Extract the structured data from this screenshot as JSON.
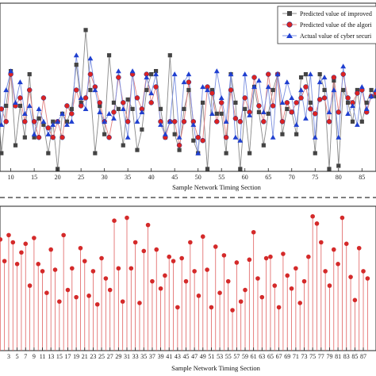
{
  "chart_data": [
    {
      "type": "line",
      "xlabel": "Sample Network Timing Section",
      "ylabel": "",
      "xlim": [
        6,
        88
      ],
      "ylim": [
        0,
        1.03
      ],
      "tick_labels": [
        "10",
        "15",
        "20",
        "25",
        "30",
        "35",
        "40",
        "45",
        "50",
        "55",
        "60",
        "65",
        "70",
        "75",
        "80",
        "85"
      ],
      "tick_values": [
        10,
        15,
        20,
        25,
        30,
        35,
        40,
        45,
        50,
        55,
        60,
        65,
        70,
        75,
        80,
        85
      ],
      "legend_position": "top-right",
      "series": [
        {
          "name": "Predicted value of improved",
          "marker": "square",
          "color": "#444444",
          "line_color": "#888888",
          "x": [
            6,
            7,
            8,
            9,
            10,
            11,
            12,
            13,
            14,
            15,
            16,
            17,
            18,
            19,
            20,
            21,
            22,
            23,
            24,
            25,
            26,
            27,
            28,
            29,
            30,
            31,
            32,
            33,
            34,
            35,
            36,
            37,
            38,
            39,
            40,
            41,
            42,
            43,
            44,
            45,
            46,
            47,
            48,
            49,
            50,
            51,
            52,
            53,
            54,
            55,
            56,
            57,
            58,
            59,
            60,
            61,
            62,
            63,
            64,
            65,
            66,
            67,
            68,
            69,
            70,
            71,
            72,
            73,
            74,
            75,
            76,
            77,
            78,
            79,
            80,
            81,
            82,
            83,
            84,
            85,
            86,
            87,
            88
          ],
          "y": [
            0.32,
            0.58,
            0.1,
            0.4,
            0.62,
            0.15,
            0.4,
            0.2,
            0.6,
            0.2,
            0.32,
            0.28,
            0.1,
            0.3,
            0.0,
            0.35,
            0.3,
            0.38,
            0.66,
            0.42,
            0.88,
            0.5,
            0.1,
            0.4,
            0.22,
            0.72,
            0.42,
            0.38,
            0.15,
            0.44,
            0.38,
            0.12,
            0.25,
            0.5,
            0.6,
            0.62,
            0.38,
            0.2,
            0.72,
            0.22,
            0.12,
            0.38,
            0.5,
            0.18,
            0.1,
            0.42,
            0.0,
            0.5,
            0.35,
            0.35,
            0.1,
            0.6,
            0.42,
            0.0,
            0.38,
            0.1,
            0.52,
            0.36,
            0.15,
            0.35,
            0.5,
            0.6,
            0.22,
            0.38,
            0.36,
            0.22,
            0.58,
            0.6,
            0.42,
            0.1,
            0.6,
            0.5,
            0.0,
            0.56,
            0.02,
            0.5,
            0.42,
            0.3,
            0.5,
            0.3,
            0.42,
            0.5,
            0.46
          ]
        },
        {
          "name": "Predicted value of the algori",
          "marker": "circle",
          "color": "#dd2222",
          "line_color": "#e08080",
          "x": [
            6,
            7,
            8,
            9,
            10,
            11,
            12,
            13,
            14,
            15,
            16,
            17,
            18,
            19,
            20,
            21,
            22,
            23,
            24,
            25,
            26,
            27,
            28,
            29,
            30,
            31,
            32,
            33,
            34,
            35,
            36,
            37,
            38,
            39,
            40,
            41,
            42,
            43,
            44,
            45,
            46,
            47,
            48,
            49,
            50,
            51,
            52,
            53,
            54,
            55,
            56,
            57,
            58,
            59,
            60,
            61,
            62,
            63,
            64,
            65,
            66,
            67,
            68,
            69,
            70,
            71,
            72,
            73,
            74,
            75,
            76,
            77,
            78,
            79,
            80,
            81,
            82,
            83,
            84,
            85,
            86,
            87,
            88
          ],
          "y": [
            0.54,
            0.4,
            0.38,
            0.3,
            0.6,
            0.4,
            0.45,
            0.3,
            0.5,
            0.3,
            0.2,
            0.45,
            0.26,
            0.2,
            0.3,
            0.2,
            0.4,
            0.35,
            0.5,
            0.4,
            0.45,
            0.6,
            0.52,
            0.42,
            0.3,
            0.2,
            0.36,
            0.58,
            0.42,
            0.3,
            0.6,
            0.45,
            0.38,
            0.6,
            0.42,
            0.52,
            0.3,
            0.2,
            0.3,
            0.3,
            0.15,
            0.3,
            0.55,
            0.3,
            0.2,
            0.18,
            0.52,
            0.48,
            0.3,
            0.42,
            0.2,
            0.5,
            0.32,
            0.3,
            0.45,
            0.36,
            0.58,
            0.4,
            0.3,
            0.6,
            0.4,
            0.6,
            0.3,
            0.42,
            0.36,
            0.42,
            0.45,
            0.52,
            0.38,
            0.35,
            0.44,
            0.45,
            0.3,
            0.58,
            0.36,
            0.6,
            0.45,
            0.42,
            0.48,
            0.5,
            0.36,
            0.46,
            0.48
          ]
        },
        {
          "name": "Actual value of cyber securi",
          "marker": "triangle",
          "color": "#1f3fd0",
          "line_color": "#7a8fe0",
          "x": [
            6,
            7,
            8,
            9,
            10,
            11,
            12,
            13,
            14,
            15,
            16,
            17,
            18,
            19,
            20,
            21,
            22,
            23,
            24,
            25,
            26,
            27,
            28,
            29,
            30,
            31,
            32,
            33,
            34,
            35,
            36,
            37,
            38,
            39,
            40,
            41,
            42,
            43,
            44,
            45,
            46,
            47,
            48,
            49,
            50,
            51,
            52,
            53,
            54,
            55,
            56,
            57,
            58,
            59,
            60,
            61,
            62,
            63,
            64,
            65,
            66,
            67,
            68,
            69,
            70,
            71,
            72,
            73,
            74,
            75,
            76,
            77,
            78,
            79,
            80,
            81,
            82,
            83,
            84,
            85,
            86,
            87,
            88
          ],
          "y": [
            0.6,
            0.66,
            0.28,
            0.5,
            0.62,
            0.42,
            0.55,
            0.35,
            0.4,
            0.22,
            0.38,
            0.3,
            0.22,
            0.28,
            0.3,
            0.35,
            0.28,
            0.3,
            0.72,
            0.45,
            0.38,
            0.7,
            0.5,
            0.36,
            0.3,
            0.35,
            0.32,
            0.62,
            0.38,
            0.2,
            0.62,
            0.3,
            0.36,
            0.58,
            0.48,
            0.6,
            0.28,
            0.22,
            0.3,
            0.6,
            0.2,
            0.55,
            0.6,
            0.28,
            0.1,
            0.52,
            0.5,
            0.35,
            0.62,
            0.45,
            0.3,
            0.6,
            0.2,
            0.18,
            0.6,
            0.34,
            0.52,
            0.56,
            0.36,
            0.52,
            0.2,
            0.6,
            0.42,
            0.55,
            0.45,
            0.28,
            0.5,
            0.32,
            0.6,
            0.2,
            0.55,
            0.58,
            0.36,
            0.5,
            0.2,
            0.65,
            0.35,
            0.4,
            0.28,
            0.52,
            0.38,
            0.46,
            0.5
          ]
        }
      ]
    },
    {
      "type": "stem",
      "xlabel": "Sample Network Timing Section",
      "ylabel": "",
      "xlim": [
        0,
        90
      ],
      "ylim": [
        0,
        1
      ],
      "tick_labels": [
        "3",
        "5",
        "7",
        "9",
        "11",
        "13",
        "15",
        "17",
        "19",
        "21",
        "23",
        "25",
        "27",
        "29",
        "31",
        "33",
        "35",
        "37",
        "39",
        "41",
        "43",
        "45",
        "47",
        "49",
        "51",
        "53",
        "55",
        "57",
        "59",
        "61",
        "63",
        "65",
        "67",
        "69",
        "71",
        "73",
        "75",
        "77",
        "79",
        "81",
        "83",
        "85",
        "87"
      ],
      "tick_values": [
        3,
        5,
        7,
        9,
        11,
        13,
        15,
        17,
        19,
        21,
        23,
        25,
        27,
        29,
        31,
        33,
        35,
        37,
        39,
        41,
        43,
        45,
        47,
        49,
        51,
        53,
        55,
        57,
        59,
        61,
        63,
        65,
        67,
        69,
        71,
        73,
        75,
        77,
        79,
        81,
        83,
        85,
        87
      ],
      "color": "#d42a2a",
      "x": [
        1,
        2,
        3,
        4,
        5,
        6,
        7,
        8,
        9,
        10,
        11,
        12,
        13,
        14,
        15,
        16,
        17,
        18,
        19,
        20,
        21,
        22,
        23,
        24,
        25,
        26,
        27,
        28,
        29,
        30,
        31,
        32,
        33,
        34,
        35,
        36,
        37,
        38,
        39,
        40,
        41,
        42,
        43,
        44,
        45,
        46,
        47,
        48,
        49,
        50,
        51,
        52,
        53,
        54,
        55,
        56,
        57,
        58,
        59,
        60,
        61,
        62,
        63,
        64,
        65,
        66,
        67,
        68,
        69,
        70,
        71,
        72,
        73,
        74,
        75,
        76,
        77,
        78,
        79,
        80,
        81,
        82,
        83,
        84,
        85,
        86,
        87,
        88
      ],
      "y": [
        0.77,
        0.62,
        0.8,
        0.75,
        0.6,
        0.68,
        0.74,
        0.45,
        0.78,
        0.6,
        0.55,
        0.4,
        0.7,
        0.56,
        0.34,
        0.8,
        0.42,
        0.57,
        0.37,
        0.71,
        0.62,
        0.38,
        0.55,
        0.32,
        0.64,
        0.5,
        0.42,
        0.9,
        0.57,
        0.34,
        0.92,
        0.57,
        0.75,
        0.33,
        0.69,
        0.87,
        0.48,
        0.7,
        0.43,
        0.52,
        0.65,
        0.62,
        0.3,
        0.64,
        0.48,
        0.75,
        0.55,
        0.38,
        0.79,
        0.56,
        0.3,
        0.72,
        0.4,
        0.66,
        0.48,
        0.28,
        0.61,
        0.34,
        0.42,
        0.63,
        0.82,
        0.5,
        0.37,
        0.64,
        0.65,
        0.45,
        0.3,
        0.67,
        0.52,
        0.43,
        0.57,
        0.33,
        0.48,
        0.65,
        0.93,
        0.88,
        0.75,
        0.55,
        0.45,
        0.7,
        0.6,
        0.92,
        0.74,
        0.51,
        0.35,
        0.71,
        0.55,
        0.5
      ]
    }
  ]
}
